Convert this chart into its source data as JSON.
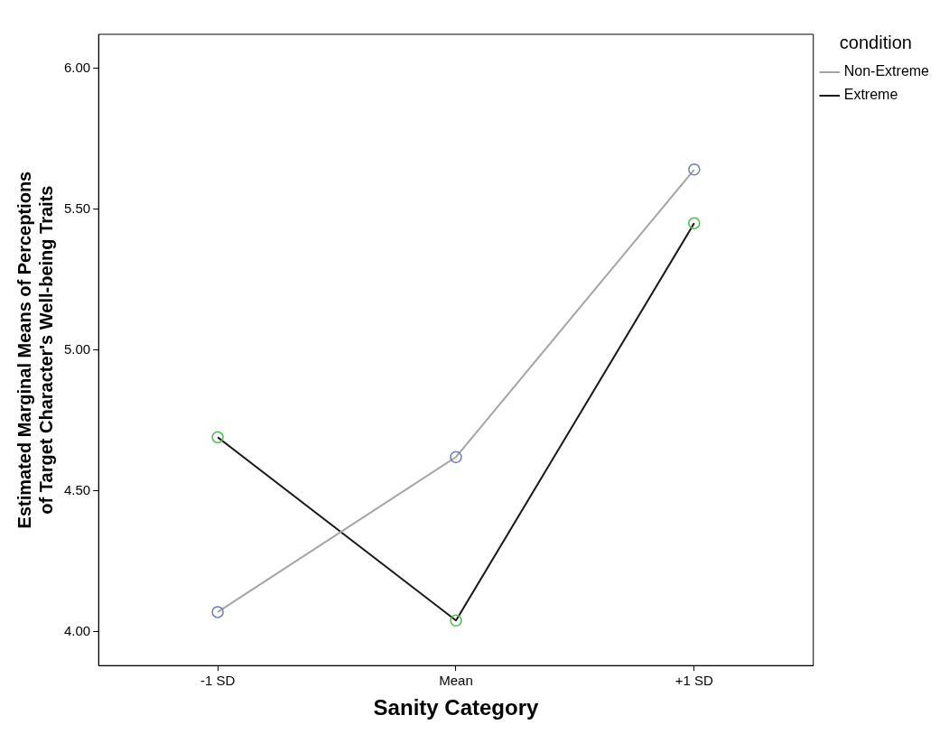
{
  "chart_data": {
    "type": "line",
    "xlabel": "Sanity Category",
    "ylabel": "Estimated Marginal Means of Perceptions of Target Character's Well-being Traits",
    "categories": [
      "-1 SD",
      "Mean",
      "+1 SD"
    ],
    "series": [
      {
        "name": "Non-Extreme",
        "color": "#a6a6a6",
        "colors": [
          "#6b7fc4",
          "#6b7fc4",
          "#6b7fc4"
        ],
        "values": [
          4.07,
          4.62,
          5.64
        ]
      },
      {
        "name": "Extreme",
        "color": "#1a1a1a",
        "colors": [
          "#4cc24c",
          "#4cc24c",
          "#4cc24c"
        ],
        "values": [
          4.69,
          4.04,
          5.45
        ]
      }
    ],
    "ylim": [
      3.88,
      6.12
    ],
    "yticks": [
      {
        "value": 4,
        "label": "4.00"
      },
      {
        "value": 4.5,
        "label": "4.50"
      },
      {
        "value": 5,
        "label": "5.00"
      },
      {
        "value": 5.5,
        "label": "5.50"
      },
      {
        "value": 6,
        "label": "6.00"
      }
    ],
    "grid": false,
    "legend": "top right",
    "legend_title": "condition",
    "marker": "circle",
    "line_style": "solid"
  }
}
